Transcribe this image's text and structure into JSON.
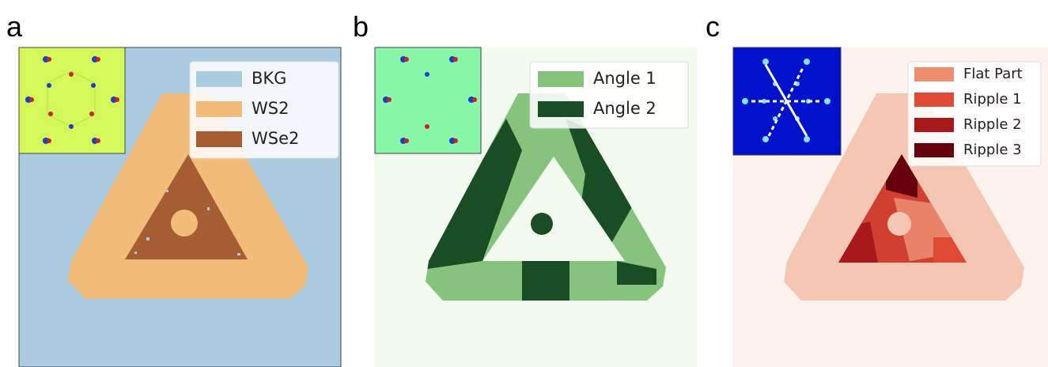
{
  "panels": [
    {
      "label": "a",
      "legend": [
        {
          "name": "BKG",
          "color": "#abcbe0"
        },
        {
          "name": "WS2",
          "color": "#f2bd7a"
        },
        {
          "name": "WSe2",
          "color": "#a65d32"
        }
      ]
    },
    {
      "label": "b",
      "legend": [
        {
          "name": "Angle 1",
          "color": "#86c47e"
        },
        {
          "name": "Angle 2",
          "color": "#1b4d24"
        }
      ]
    },
    {
      "label": "c",
      "legend": [
        {
          "name": "Flat Part",
          "color": "#ee8e6e"
        },
        {
          "name": "Ripple 1",
          "color": "#e04a35"
        },
        {
          "name": "Ripple 2",
          "color": "#a8191c"
        },
        {
          "name": "Ripple 3",
          "color": "#67000d"
        }
      ]
    }
  ]
}
